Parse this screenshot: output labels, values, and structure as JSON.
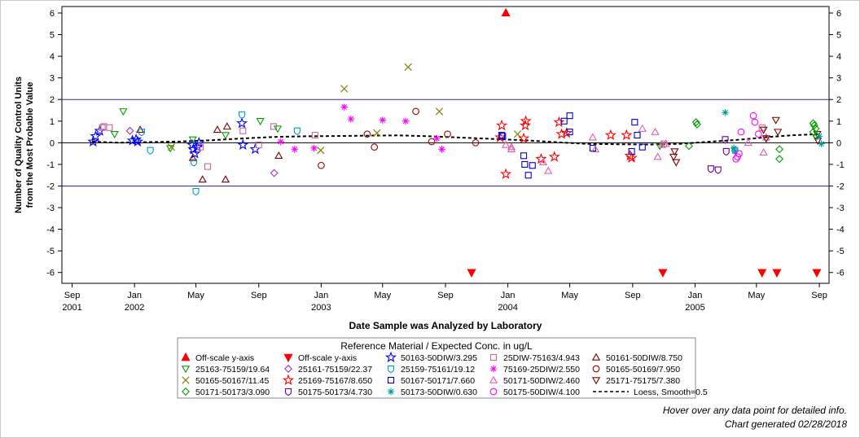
{
  "chart_data": {
    "type": "scatter",
    "xlabel": "Date Sample was Analyzed by Laboratory",
    "ylabel": [
      "Number of Quality Control Units",
      "from the Most Probable Value"
    ],
    "xlim": [
      "2001-08-12",
      "2005-09-20"
    ],
    "ylim": [
      -6.5,
      6.3
    ],
    "yticks": [
      -6,
      -5,
      -4,
      -3,
      -2,
      -1,
      0,
      1,
      2,
      3,
      4,
      5,
      6
    ],
    "xticks": [
      {
        "date": "2001-09-01",
        "label": "Sep",
        "year": "2001"
      },
      {
        "date": "2002-01-01",
        "label": "Jan",
        "year": "2002"
      },
      {
        "date": "2002-05-01",
        "label": "May",
        "year": ""
      },
      {
        "date": "2002-09-01",
        "label": "Sep",
        "year": ""
      },
      {
        "date": "2003-01-01",
        "label": "Jan",
        "year": "2003"
      },
      {
        "date": "2003-05-01",
        "label": "May",
        "year": ""
      },
      {
        "date": "2003-09-01",
        "label": "Sep",
        "year": ""
      },
      {
        "date": "2004-01-01",
        "label": "Jan",
        "year": "2004"
      },
      {
        "date": "2004-05-01",
        "label": "May",
        "year": ""
      },
      {
        "date": "2004-09-01",
        "label": "Sep",
        "year": ""
      },
      {
        "date": "2005-01-01",
        "label": "Jan",
        "year": "2005"
      },
      {
        "date": "2005-05-01",
        "label": "May",
        "year": ""
      },
      {
        "date": "2005-09-01",
        "label": "Sep",
        "year": ""
      }
    ],
    "reference_lines": [
      {
        "y": 0,
        "color": "#000000"
      },
      {
        "y": 2,
        "color": "#2a2ab0"
      },
      {
        "y": -2,
        "color": "#2a2ab0"
      }
    ],
    "legend": {
      "title": "Reference Material / Expected Conc. in ug/L",
      "placement": "bottom-center"
    },
    "series": [
      {
        "name": "Off-scale y-axis",
        "marker": "tri-up-filled",
        "color": "#ff0000",
        "points": [
          [
            "2003-12-28",
            6.0
          ]
        ]
      },
      {
        "name": "Off-scale y-axis",
        "marker": "tri-down-filled",
        "color": "#ff0000",
        "points": [
          [
            "2003-10-22",
            -6.0
          ],
          [
            "2004-10-30",
            -6.0
          ],
          [
            "2005-05-12",
            -6.0
          ],
          [
            "2005-06-10",
            -6.0
          ],
          [
            "2005-08-27",
            -6.0
          ]
        ]
      },
      {
        "name": "50163-50DIW/3.295",
        "marker": "star",
        "color": "#0000ff",
        "points": [
          [
            "2001-10-12",
            0.05
          ],
          [
            "2001-10-17",
            0.3
          ],
          [
            "2001-10-25",
            0.55
          ],
          [
            "2001-12-28",
            0.1
          ],
          [
            "2002-01-07",
            0.05
          ],
          [
            "2002-04-24",
            -0.1
          ],
          [
            "2002-04-29",
            -0.5
          ],
          [
            "2002-05-04",
            -0.2
          ],
          [
            "2002-05-07",
            0.0
          ],
          [
            "2002-07-30",
            0.9
          ],
          [
            "2002-08-01",
            -0.1
          ],
          [
            "2002-08-25",
            -0.3
          ],
          [
            "2002-01-04",
            0.15
          ],
          [
            "2002-04-26",
            -0.3
          ]
        ]
      },
      {
        "name": "25DIW-75163/4.943",
        "marker": "square",
        "color": "#cc6699",
        "points": [
          [
            "2001-10-30",
            0.7
          ],
          [
            "2001-11-02",
            0.75
          ],
          [
            "2001-11-13",
            0.7
          ],
          [
            "2002-05-10",
            -0.2
          ],
          [
            "2002-05-24",
            -1.1
          ],
          [
            "2002-08-01",
            0.55
          ],
          [
            "2002-09-01",
            -0.1
          ],
          [
            "2002-09-30",
            0.75
          ],
          [
            "2002-12-20",
            0.35
          ],
          [
            "2005-05-12",
            0.7
          ],
          [
            "2004-11-01",
            -0.05
          ]
        ]
      },
      {
        "name": "50161-50DIW/8.750",
        "marker": "tri-up",
        "color": "#800000",
        "points": [
          [
            "2002-01-12",
            0.6
          ],
          [
            "2002-04-25",
            -0.7
          ],
          [
            "2002-05-14",
            -1.7
          ],
          [
            "2002-06-12",
            0.6
          ],
          [
            "2002-06-28",
            -1.7
          ],
          [
            "2002-10-10",
            -0.6
          ],
          [
            "2002-07-01",
            0.75
          ]
        ]
      },
      {
        "name": "25163-75159/19.64",
        "marker": "tri-down",
        "color": "#00a000",
        "points": [
          [
            "2001-12-10",
            1.45
          ],
          [
            "2001-11-23",
            0.4
          ],
          [
            "2002-03-12",
            -0.25
          ],
          [
            "2002-04-25",
            0.15
          ],
          [
            "2002-06-28",
            0.35
          ],
          [
            "2002-09-04",
            1.0
          ],
          [
            "2002-10-08",
            0.65
          ],
          [
            "2004-10-24",
            -0.15
          ]
        ]
      },
      {
        "name": "25161-75159/22.37",
        "marker": "diamond",
        "color": "#9932cc",
        "points": [
          [
            "2001-12-23",
            0.55
          ],
          [
            "2002-10-01",
            -1.4
          ]
        ]
      },
      {
        "name": "25159-75161/19.12",
        "marker": "shield",
        "color": "#0099cc",
        "points": [
          [
            "2002-01-15",
            0.5
          ],
          [
            "2002-02-01",
            -0.35
          ],
          [
            "2002-04-27",
            -0.9
          ],
          [
            "2002-05-01",
            -2.25
          ],
          [
            "2002-07-30",
            1.3
          ],
          [
            "2002-11-15",
            0.55
          ],
          [
            "2005-03-20",
            -0.35
          ]
        ]
      },
      {
        "name": "75169-25DIW/2.550",
        "marker": "asterisk",
        "color": "#ff00ff",
        "points": [
          [
            "2002-10-14",
            0.05
          ],
          [
            "2002-11-10",
            -0.3
          ],
          [
            "2002-12-18",
            -0.25
          ],
          [
            "2003-02-15",
            1.65
          ],
          [
            "2003-02-28",
            1.1
          ],
          [
            "2003-05-01",
            1.05
          ],
          [
            "2003-06-15",
            1.0
          ],
          [
            "2003-08-15",
            0.2
          ],
          [
            "2003-08-25",
            -0.3
          ]
        ]
      },
      {
        "name": "50165-50169/7.950",
        "marker": "circle",
        "color": "#a00000",
        "points": [
          [
            "2003-01-01",
            -1.05
          ],
          [
            "2003-04-01",
            0.4
          ],
          [
            "2003-04-15",
            -0.2
          ],
          [
            "2003-07-05",
            1.45
          ],
          [
            "2003-08-05",
            0.05
          ],
          [
            "2003-09-05",
            0.4
          ],
          [
            "2003-10-30",
            0.0
          ]
        ]
      },
      {
        "name": "50165-50167/11.45",
        "marker": "x",
        "color": "#808000",
        "points": [
          [
            "2002-03-14",
            -0.2
          ],
          [
            "2002-12-31",
            -0.35
          ],
          [
            "2003-02-15",
            2.5
          ],
          [
            "2003-04-20",
            0.45
          ],
          [
            "2003-06-20",
            3.5
          ],
          [
            "2003-08-20",
            1.45
          ],
          [
            "2004-01-20",
            0.4
          ]
        ]
      },
      {
        "name": "25169-75167/8.650",
        "marker": "star",
        "color": "#ff0000",
        "points": [
          [
            "2003-12-20",
            0.8
          ],
          [
            "2003-12-17",
            0.25
          ],
          [
            "2003-12-28",
            -1.45
          ],
          [
            "2004-02-05",
            1.0
          ],
          [
            "2004-02-04",
            0.8
          ],
          [
            "2004-02-01",
            0.2
          ],
          [
            "2004-03-06",
            -0.75
          ],
          [
            "2004-04-01",
            -0.65
          ],
          [
            "2004-04-10",
            0.95
          ],
          [
            "2004-04-15",
            0.4
          ],
          [
            "2004-04-25",
            0.45
          ],
          [
            "2004-07-20",
            0.35
          ],
          [
            "2004-08-20",
            0.35
          ],
          [
            "2004-08-27",
            -0.6
          ],
          [
            "2004-08-30",
            -0.7
          ]
        ]
      },
      {
        "name": "50167-50171/7.660",
        "marker": "square",
        "color": "#0000cc",
        "points": [
          [
            "2003-12-20",
            0.35
          ],
          [
            "2003-12-22",
            0.3
          ],
          [
            "2004-02-01",
            -0.6
          ],
          [
            "2004-02-03",
            -1.0
          ],
          [
            "2004-02-10",
            -1.5
          ],
          [
            "2004-02-18",
            -1.05
          ],
          [
            "2004-04-20",
            1.0
          ],
          [
            "2004-05-01",
            1.25
          ],
          [
            "2004-05-01",
            0.5
          ],
          [
            "2004-06-15",
            -0.25
          ],
          [
            "2004-08-30",
            -0.4
          ],
          [
            "2004-09-05",
            0.95
          ],
          [
            "2004-09-10",
            0.35
          ],
          [
            "2004-09-20",
            -0.2
          ]
        ]
      },
      {
        "name": "50171-50DIW/2.460",
        "marker": "tri-up",
        "color": "#e060b0",
        "points": [
          [
            "2003-12-28",
            -0.1
          ],
          [
            "2004-01-08",
            -0.2
          ],
          [
            "2004-01-08",
            -0.3
          ],
          [
            "2004-03-10",
            -0.9
          ],
          [
            "2004-03-20",
            -1.3
          ],
          [
            "2004-06-15",
            0.25
          ],
          [
            "2004-06-20",
            -0.3
          ],
          [
            "2004-09-20",
            0.65
          ],
          [
            "2004-10-15",
            0.5
          ],
          [
            "2004-10-20",
            -0.65
          ],
          [
            "2004-10-28",
            -0.1
          ],
          [
            "2004-11-05",
            -0.05
          ],
          [
            "2005-04-15",
            0.0
          ],
          [
            "2005-05-15",
            -0.45
          ],
          [
            "2005-05-20",
            0.25
          ]
        ]
      },
      {
        "name": "25171-75175/7.380",
        "marker": "tri-down",
        "color": "#800000",
        "points": [
          [
            "2004-11-20",
            -0.65
          ],
          [
            "2004-11-22",
            -0.4
          ],
          [
            "2004-11-25",
            -0.9
          ],
          [
            "2005-05-15",
            0.6
          ],
          [
            "2005-05-20",
            0.2
          ],
          [
            "2005-06-08",
            1.05
          ],
          [
            "2005-06-12",
            0.5
          ],
          [
            "2005-08-28",
            0.4
          ],
          [
            "2005-08-29",
            0.1
          ]
        ]
      },
      {
        "name": "50171-50173/3.090",
        "marker": "diamond",
        "color": "#00a000",
        "points": [
          [
            "2004-12-20",
            -0.15
          ],
          [
            "2005-01-03",
            0.95
          ],
          [
            "2005-01-05",
            0.85
          ],
          [
            "2005-06-15",
            -0.3
          ],
          [
            "2005-06-15",
            -0.75
          ],
          [
            "2005-08-20",
            0.9
          ],
          [
            "2005-08-20",
            0.5
          ],
          [
            "2005-08-22",
            0.8
          ],
          [
            "2005-08-25",
            0.65
          ],
          [
            "2005-08-27",
            0.3
          ]
        ]
      },
      {
        "name": "50175-50173/4.730",
        "marker": "shield",
        "color": "#660099",
        "points": [
          [
            "2005-02-01",
            -1.2
          ],
          [
            "2005-02-15",
            -1.25
          ],
          [
            "2005-03-01",
            0.15
          ],
          [
            "2005-03-03",
            -0.4
          ]
        ]
      },
      {
        "name": "50173-50DIW/0.630",
        "marker": "asterisk",
        "color": "#009999",
        "points": [
          [
            "2005-03-01",
            1.4
          ],
          [
            "2005-03-18",
            -0.25
          ],
          [
            "2005-03-20",
            -0.4
          ],
          [
            "2005-09-01",
            0.3
          ],
          [
            "2005-09-05",
            -0.05
          ]
        ]
      },
      {
        "name": "50175-50DIW/4.100",
        "marker": "circle",
        "color": "#ff00ff",
        "points": [
          [
            "2005-03-25",
            -0.65
          ],
          [
            "2005-03-28",
            -0.5
          ],
          [
            "2005-04-01",
            0.5
          ],
          [
            "2005-04-25",
            1.25
          ],
          [
            "2005-04-28",
            0.95
          ],
          [
            "2005-05-05",
            0.4
          ],
          [
            "2005-03-22",
            -0.75
          ]
        ]
      }
    ],
    "loess": {
      "name": "Loess, Smooth=0.5",
      "color": "#000000",
      "points": [
        [
          "2001-10-10",
          0.05
        ],
        [
          "2001-12-01",
          0.0
        ],
        [
          "2002-02-01",
          0.03
        ],
        [
          "2002-04-01",
          0.06
        ],
        [
          "2002-06-01",
          0.12
        ],
        [
          "2002-08-01",
          0.2
        ],
        [
          "2002-10-01",
          0.27
        ],
        [
          "2002-12-01",
          0.3
        ],
        [
          "2003-02-01",
          0.31
        ],
        [
          "2003-04-01",
          0.33
        ],
        [
          "2003-06-01",
          0.34
        ],
        [
          "2003-08-01",
          0.3
        ],
        [
          "2003-10-01",
          0.24
        ],
        [
          "2003-12-01",
          0.18
        ],
        [
          "2004-02-01",
          0.12
        ],
        [
          "2004-04-01",
          0.03
        ],
        [
          "2004-06-01",
          -0.05
        ],
        [
          "2004-08-01",
          -0.07
        ],
        [
          "2004-10-01",
          -0.08
        ],
        [
          "2004-12-01",
          -0.05
        ],
        [
          "2005-02-01",
          0.05
        ],
        [
          "2005-04-01",
          0.15
        ],
        [
          "2005-06-01",
          0.28
        ],
        [
          "2005-07-15",
          0.35
        ],
        [
          "2005-09-05",
          0.4
        ]
      ]
    }
  },
  "footnotes": {
    "hover_hint": "Hover over any data point for detailed info.",
    "generated": "Chart generated 02/28/2018"
  }
}
